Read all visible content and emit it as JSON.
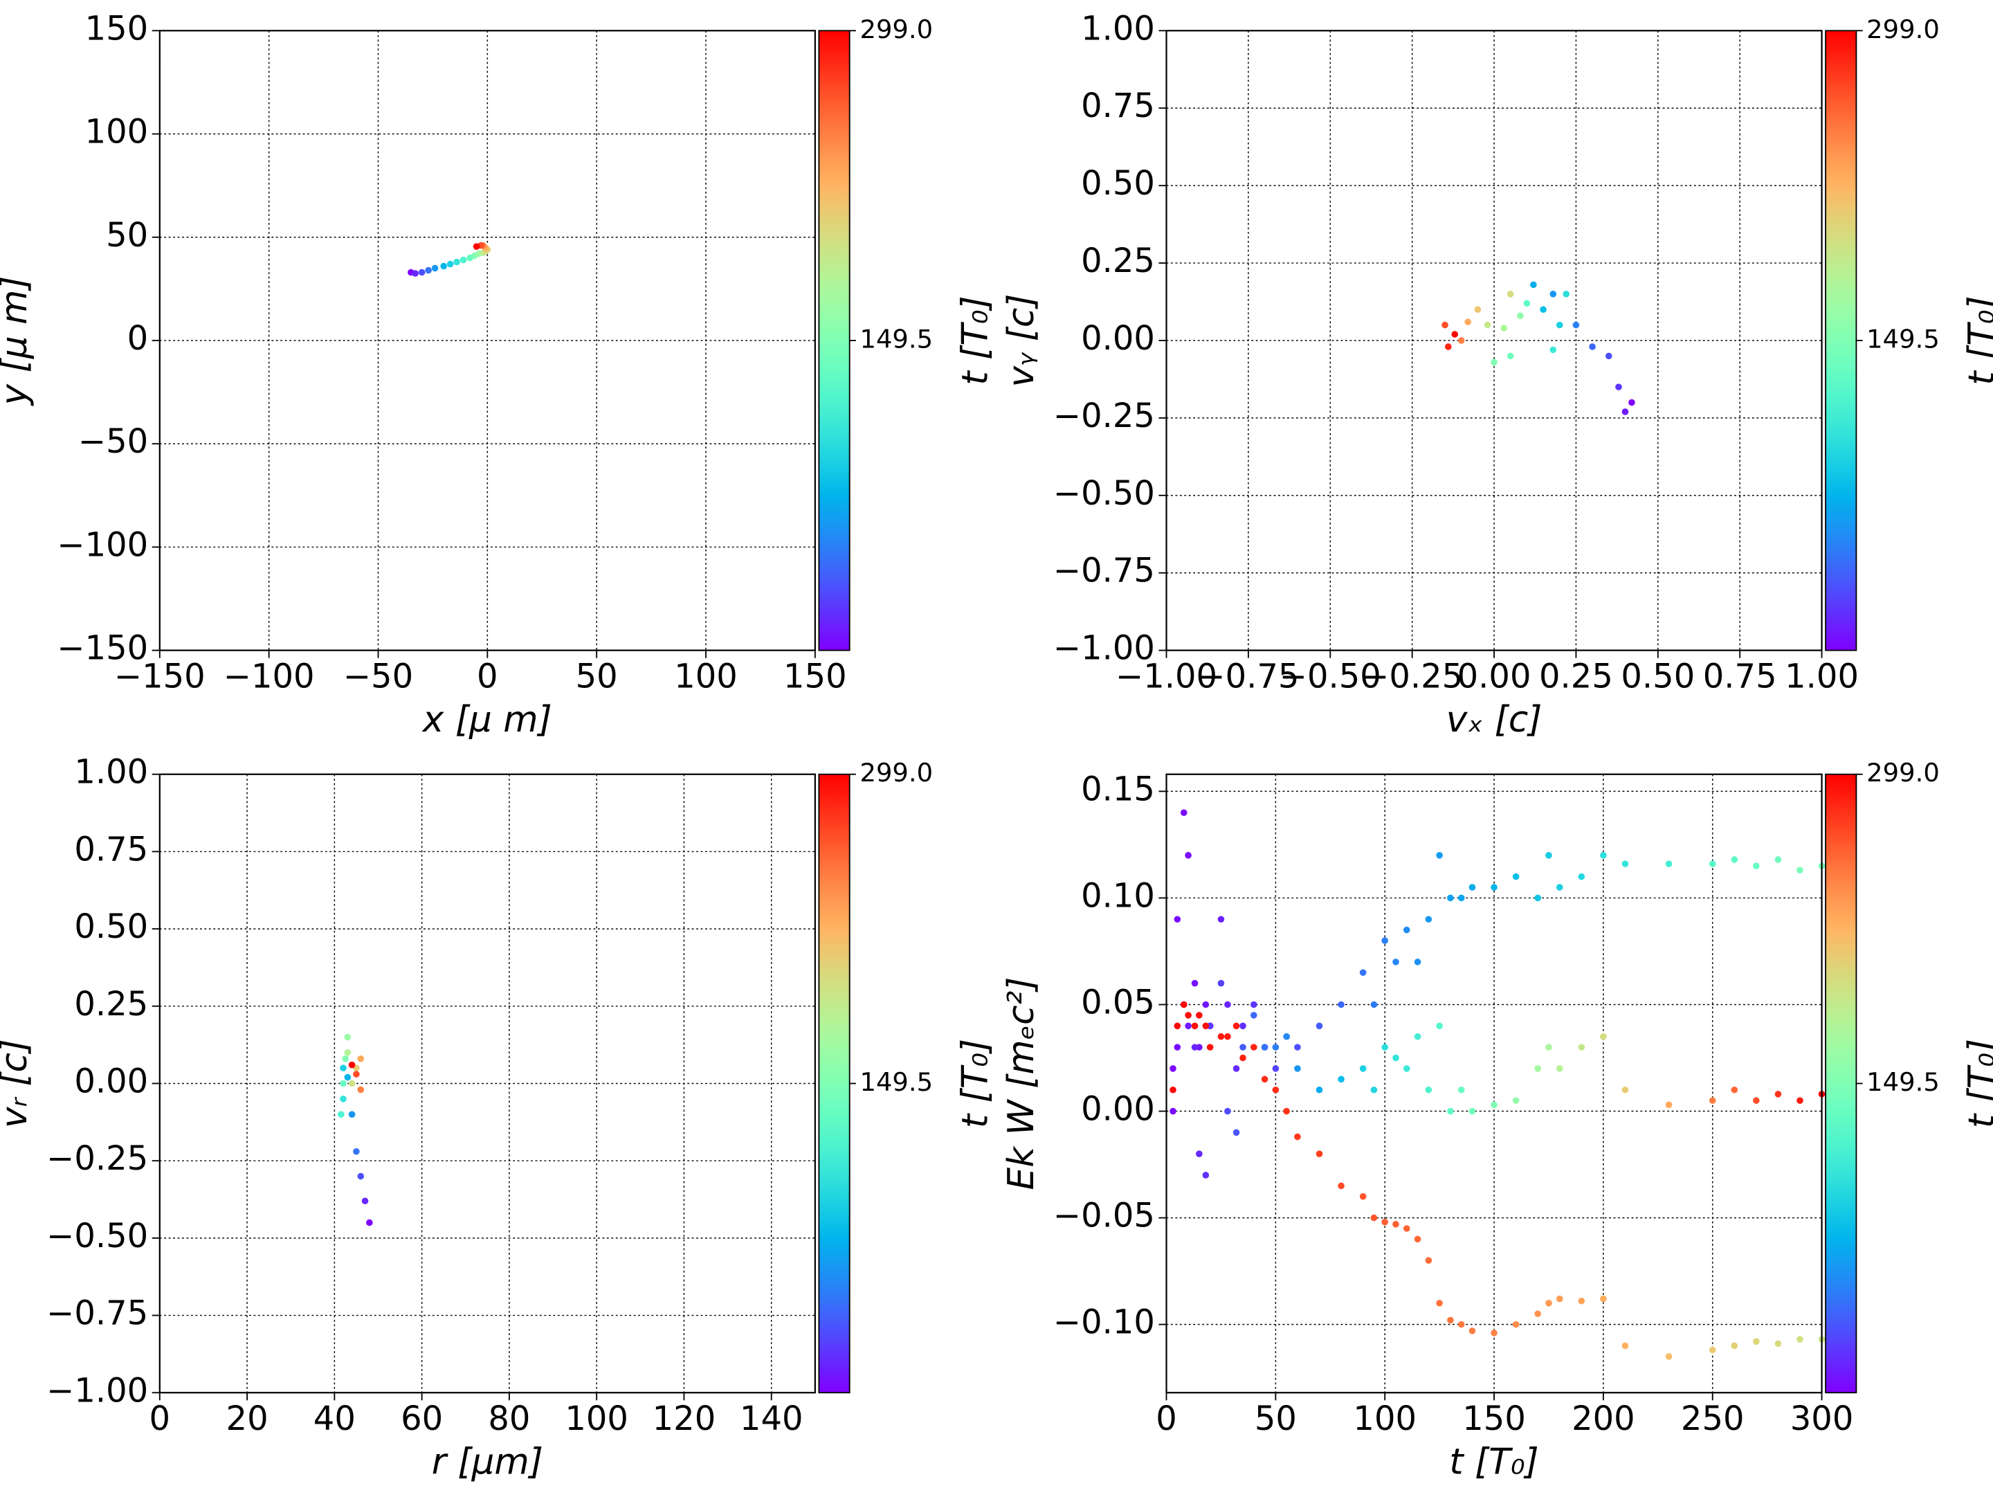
{
  "chart_data": [
    {
      "type": "scatter",
      "xlabel": "x  [μ m]",
      "ylabel": "y  [μ m]",
      "colorbar_label": "t [T₀]",
      "cmap": "rainbow",
      "clim": [
        0,
        299
      ],
      "cticks": [
        149.5,
        {
          "value": 299,
          "label": "299.0"
        }
      ],
      "grid": true,
      "xlim": [
        -150,
        150
      ],
      "ylim": [
        -150,
        150
      ],
      "xticks": [
        {
          "value": -150,
          "label": "−150"
        },
        {
          "value": -100,
          "label": "−100"
        },
        {
          "value": -50,
          "label": "−50"
        },
        0,
        50,
        100,
        150
      ],
      "yticks": [
        {
          "value": -150,
          "label": "−150"
        },
        {
          "value": -100,
          "label": "−100"
        },
        {
          "value": -50,
          "label": "−50"
        },
        0,
        50,
        100,
        150
      ],
      "series": [
        {
          "x": [
            -35,
            -33,
            -30,
            -27,
            -24,
            -20,
            -17,
            -14,
            -11,
            -8,
            -6,
            -4,
            -2,
            -1,
            0,
            -1,
            -2,
            -3,
            -5
          ],
          "y": [
            33,
            32.5,
            33,
            34,
            35,
            36,
            37,
            38,
            39,
            40,
            41,
            42,
            42.5,
            43,
            44,
            45,
            46,
            46,
            45.5
          ],
          "c": [
            0,
            15,
            30,
            45,
            60,
            75,
            90,
            105,
            120,
            135,
            150,
            165,
            180,
            195,
            210,
            230,
            250,
            270,
            299
          ]
        }
      ]
    },
    {
      "type": "scatter",
      "xlabel": "vₓ [c]",
      "ylabel": "vᵧ [c]",
      "colorbar_label": "t [T₀]",
      "cmap": "rainbow",
      "clim": [
        0,
        299
      ],
      "cticks": [
        149.5,
        {
          "value": 299,
          "label": "299.0"
        }
      ],
      "grid": true,
      "xlim": [
        -1,
        1
      ],
      "ylim": [
        -1,
        1
      ],
      "xticks": [
        {
          "value": -1,
          "label": "−1.00"
        },
        {
          "value": -0.75,
          "label": "−0.75"
        },
        {
          "value": -0.5,
          "label": "−0.50"
        },
        {
          "value": -0.25,
          "label": "−0.25"
        },
        {
          "value": 0,
          "label": "0.00"
        },
        {
          "value": 0.25,
          "label": "0.25"
        },
        {
          "value": 0.5,
          "label": "0.50"
        },
        {
          "value": 0.75,
          "label": "0.75"
        },
        {
          "value": 1,
          "label": "1.00"
        }
      ],
      "yticks": [
        {
          "value": -1,
          "label": "−1.00"
        },
        {
          "value": -0.75,
          "label": "−0.75"
        },
        {
          "value": -0.5,
          "label": "−0.50"
        },
        {
          "value": -0.25,
          "label": "−0.25"
        },
        {
          "value": 0,
          "label": "0.00"
        },
        {
          "value": 0.25,
          "label": "0.25"
        },
        {
          "value": 0.5,
          "label": "0.50"
        },
        {
          "value": 0.75,
          "label": "0.75"
        },
        {
          "value": 1,
          "label": "1.00"
        }
      ],
      "series": [
        {
          "x": [
            0.42,
            0.4,
            0.38,
            0.35,
            0.3,
            0.25,
            0.18,
            0.12,
            0.15,
            0.2,
            0.22,
            0.18,
            0.1,
            0.05,
            0.0,
            0.08,
            0.03,
            -0.02,
            0.05,
            -0.05,
            -0.08,
            -0.1,
            -0.15,
            -0.14,
            -0.12
          ],
          "y": [
            -0.2,
            -0.23,
            -0.15,
            -0.05,
            -0.02,
            0.05,
            0.15,
            0.18,
            0.1,
            0.05,
            0.15,
            -0.03,
            0.12,
            -0.05,
            -0.07,
            0.08,
            0.04,
            0.05,
            0.15,
            0.1,
            0.06,
            0.0,
            0.05,
            -0.02,
            0.02
          ],
          "c": [
            0,
            10,
            20,
            30,
            40,
            50,
            60,
            70,
            80,
            90,
            100,
            110,
            130,
            140,
            150,
            160,
            175,
            190,
            200,
            215,
            230,
            250,
            270,
            285,
            299
          ]
        }
      ]
    },
    {
      "type": "scatter",
      "xlabel": "r [μm]",
      "ylabel": "vᵣ [c]",
      "colorbar_label": "t [T₀]",
      "cmap": "rainbow",
      "clim": [
        0,
        299
      ],
      "cticks": [
        149.5,
        {
          "value": 299,
          "label": "299.0"
        }
      ],
      "grid": true,
      "xlim": [
        0,
        150
      ],
      "ylim": [
        -1,
        1
      ],
      "xticks": [
        0,
        20,
        40,
        60,
        80,
        100,
        120,
        140
      ],
      "yticks": [
        {
          "value": -1,
          "label": "−1.00"
        },
        {
          "value": -0.75,
          "label": "−0.75"
        },
        {
          "value": -0.5,
          "label": "−0.50"
        },
        {
          "value": -0.25,
          "label": "−0.25"
        },
        {
          "value": 0,
          "label": "0.00"
        },
        {
          "value": 0.25,
          "label": "0.25"
        },
        {
          "value": 0.5,
          "label": "0.50"
        },
        {
          "value": 0.75,
          "label": "0.75"
        },
        {
          "value": 1,
          "label": "1.00"
        }
      ],
      "series": [
        {
          "x": [
            48,
            47,
            46,
            45,
            44,
            43,
            42,
            42,
            41.5,
            42,
            42.5,
            43,
            43,
            44,
            45,
            46,
            46,
            45,
            44
          ],
          "y": [
            -0.45,
            -0.38,
            -0.3,
            -0.22,
            -0.1,
            0.02,
            0.05,
            -0.05,
            -0.1,
            0.0,
            0.08,
            0.15,
            0.1,
            0.0,
            0.05,
            0.08,
            -0.02,
            0.03,
            0.06
          ],
          "c": [
            0,
            15,
            30,
            45,
            60,
            75,
            90,
            105,
            120,
            135,
            150,
            165,
            180,
            195,
            210,
            230,
            250,
            270,
            299
          ]
        }
      ]
    },
    {
      "type": "scatter",
      "xlabel": "t [T₀]",
      "ylabel": "Ek W [mₑc²]",
      "colorbar_label": "t [T₀]",
      "cmap": "rainbow",
      "clim": [
        0,
        299
      ],
      "cticks": [
        149.5,
        {
          "value": 299,
          "label": "299.0"
        }
      ],
      "grid": true,
      "xlim": [
        0,
        300
      ],
      "ylim": [
        -0.132,
        0.158
      ],
      "xticks": [
        0,
        50,
        100,
        150,
        200,
        250,
        300
      ],
      "yticks": [
        {
          "value": -0.1,
          "label": "−0.10"
        },
        {
          "value": -0.05,
          "label": "−0.05"
        },
        {
          "value": 0,
          "label": "0.00"
        },
        {
          "value": 0.05,
          "label": "0.05"
        },
        {
          "value": 0.1,
          "label": "0.10"
        },
        {
          "value": 0.15,
          "label": "0.15"
        }
      ],
      "series": [
        {
          "x": [
            3,
            5,
            8,
            10,
            13,
            15,
            18,
            20,
            25,
            28,
            32,
            35,
            40,
            45,
            50,
            55,
            60,
            70,
            80,
            90,
            95,
            100,
            105,
            110,
            115,
            120,
            125,
            130,
            135,
            140,
            150,
            160,
            170,
            175,
            180,
            190,
            200,
            210,
            230,
            250,
            260,
            270,
            280,
            290,
            300
          ],
          "y": [
            0.02,
            0.09,
            0.14,
            0.12,
            0.06,
            0.03,
            0.05,
            0.04,
            0.09,
            0.05,
            0.02,
            0.04,
            0.05,
            0.03,
            0.02,
            0.035,
            0.03,
            0.04,
            0.05,
            0.065,
            0.05,
            0.08,
            0.07,
            0.085,
            0.07,
            0.09,
            0.12,
            0.1,
            0.1,
            0.105,
            0.105,
            0.11,
            0.1,
            0.12,
            0.105,
            0.11,
            0.12,
            0.116,
            0.116,
            0.116,
            0.118,
            0.115,
            0.118,
            0.113,
            0.115
          ],
          "c": [
            1.5,
            2.5,
            4,
            5,
            6.5,
            7.5,
            9,
            10,
            12.5,
            14,
            16,
            17.5,
            20,
            22.5,
            25,
            27.5,
            30,
            35,
            40,
            45,
            47.5,
            50,
            52.5,
            55,
            57.5,
            60,
            62.5,
            65,
            67.5,
            70,
            75,
            80,
            85,
            87.5,
            90,
            95,
            100,
            105,
            115,
            125,
            130,
            135,
            140,
            145,
            150
          ]
        },
        {
          "x": [
            3,
            5,
            8,
            10,
            13,
            15,
            18,
            20,
            25,
            28,
            32,
            35,
            40,
            45,
            50,
            55,
            60,
            70,
            80,
            90,
            95,
            100,
            105,
            110,
            115,
            120,
            125,
            130,
            135,
            140,
            150,
            160,
            170,
            175,
            180,
            190,
            200,
            210,
            230,
            250,
            260,
            270,
            280,
            290,
            300
          ],
          "y": [
            0.0,
            0.03,
            0.05,
            0.04,
            0.03,
            -0.02,
            -0.03,
            0.04,
            0.06,
            0.0,
            -0.01,
            0.03,
            0.045,
            0.03,
            0.03,
            0.035,
            0.02,
            0.01,
            0.015,
            0.02,
            0.01,
            0.03,
            0.025,
            0.02,
            0.035,
            0.01,
            0.04,
            0.0,
            0.01,
            0.0,
            0.003,
            0.005,
            0.02,
            0.03,
            0.02,
            0.03,
            0.035,
            0.01,
            0.003,
            0.005,
            0.01,
            0.005,
            0.008,
            0.005,
            0.008
          ],
          "c": [
            3,
            5,
            8,
            10,
            13,
            15,
            18,
            20,
            25,
            28,
            32,
            35,
            40,
            45,
            50,
            55,
            60,
            70,
            80,
            90,
            95,
            100,
            105,
            110,
            115,
            120,
            125,
            130,
            135,
            140,
            150,
            160,
            170,
            175,
            180,
            190,
            200,
            210,
            230,
            250,
            260,
            270,
            280,
            290,
            299
          ]
        },
        {
          "x": [
            3,
            5,
            8,
            10,
            13,
            15,
            18,
            20,
            25,
            28,
            32,
            35,
            40,
            45,
            50,
            55,
            60,
            70,
            80,
            90,
            95,
            100,
            105,
            110,
            115,
            120,
            125,
            130,
            135,
            140,
            150,
            160,
            170,
            175,
            180,
            190,
            200,
            210,
            230,
            250,
            260,
            270,
            280,
            290,
            300
          ],
          "y": [
            0.01,
            0.04,
            0.05,
            0.045,
            0.04,
            0.045,
            0.04,
            0.03,
            0.035,
            0.035,
            0.04,
            0.025,
            0.03,
            0.015,
            0.01,
            0.0,
            -0.012,
            -0.02,
            -0.035,
            -0.04,
            -0.05,
            -0.052,
            -0.053,
            -0.055,
            -0.06,
            -0.07,
            -0.09,
            -0.098,
            -0.1,
            -0.103,
            -0.104,
            -0.1,
            -0.095,
            -0.09,
            -0.088,
            -0.089,
            -0.088,
            -0.11,
            -0.115,
            -0.112,
            -0.11,
            -0.108,
            -0.109,
            -0.107,
            -0.107
          ],
          "c": [
            298,
            297,
            296,
            295,
            294,
            294,
            293,
            292,
            290,
            289,
            288,
            287,
            285,
            283,
            282,
            280,
            278,
            275,
            271,
            268,
            266,
            264,
            262,
            261,
            259,
            257,
            255,
            254,
            252,
            250,
            247,
            243,
            240,
            238,
            236,
            233,
            229,
            226,
            219,
            212,
            208,
            205,
            201,
            198,
            194
          ]
        }
      ]
    }
  ]
}
